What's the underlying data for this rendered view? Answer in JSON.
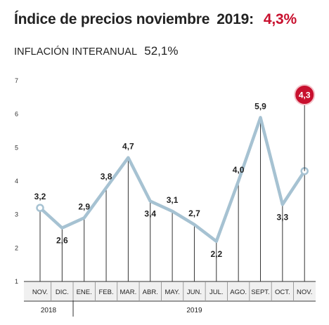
{
  "header": {
    "title": "Índice de precios noviembre",
    "year": "2019:",
    "headline_value": "4,3%"
  },
  "subheader": {
    "label": "INFLACIÓN INTERANUAL",
    "value": "52,1%"
  },
  "colors": {
    "line": "#a6c2d2",
    "highlight": "#c8102e",
    "text": "#222222",
    "band": "#f0f0f0"
  },
  "chart_data": {
    "type": "line",
    "title": "Índice de precios noviembre 2019: 4,3%",
    "xlabel": "",
    "ylabel": "",
    "ylim": [
      1,
      7
    ],
    "yticks": [
      "1",
      "2",
      "3",
      "4",
      "5",
      "6",
      "7"
    ],
    "grid": false,
    "categories": [
      "NOV.",
      "DIC.",
      "ENE.",
      "FEB.",
      "MAR.",
      "ABR.",
      "MAY.",
      "JUN.",
      "JUL.",
      "AGO.",
      "SEPT.",
      "OCT.",
      "NOV."
    ],
    "values": [
      3.2,
      2.6,
      2.9,
      3.8,
      4.7,
      3.4,
      3.1,
      2.7,
      2.2,
      4.0,
      5.9,
      3.3,
      4.3
    ],
    "labels": [
      "3,2",
      "2,6",
      "2,9",
      "3,8",
      "4,7",
      "3,4",
      "3,1",
      "2,7",
      "2,2",
      "4,0",
      "5,9",
      "3,3",
      "4,3"
    ],
    "label_position": [
      "above",
      "below",
      "above",
      "above",
      "above",
      "below",
      "above",
      "above",
      "below",
      "above",
      "above",
      "below",
      "badge"
    ],
    "markers": [
      0,
      12
    ],
    "highlight_index": 12,
    "year_groups": [
      {
        "label": "2018",
        "start": 0,
        "end": 1
      },
      {
        "label": "2019",
        "start": 2,
        "end": 12
      }
    ]
  }
}
